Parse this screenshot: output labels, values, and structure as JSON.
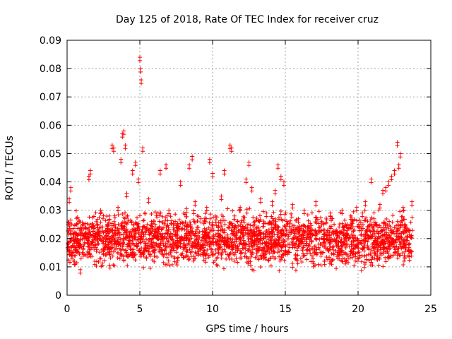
{
  "chart_data": {
    "type": "scatter",
    "title": "Day 125 of 2018, Rate Of TEC Index for receiver cruz",
    "xlabel": "GPS time / hours",
    "ylabel": "ROTI / TECUs",
    "xlim": [
      0,
      25
    ],
    "ylim": [
      0,
      0.09
    ],
    "x_ticks": [
      0,
      5,
      10,
      15,
      20,
      25
    ],
    "x_tick_labels": [
      "0",
      "5",
      "10",
      "15",
      "20",
      "25"
    ],
    "y_ticks": [
      0,
      0.01,
      0.02,
      0.03,
      0.04,
      0.05,
      0.06,
      0.07,
      0.08,
      0.09
    ],
    "y_tick_labels": [
      "0",
      "0.01",
      "0.02",
      "0.03",
      "0.04",
      "0.05",
      "0.06",
      "0.07",
      "0.08",
      "0.09"
    ],
    "grid": true,
    "marker": "+",
    "color": "#ff0000",
    "series": [
      {
        "name": "ROTI",
        "x": [
          0.05,
          0.15,
          0.25,
          0.35,
          0.5,
          0.7,
          0.9,
          1.1,
          1.3,
          1.5,
          1.6,
          1.7,
          1.9,
          2.1,
          2.3,
          2.5,
          2.7,
          2.9,
          3.1,
          3.2,
          3.3,
          3.5,
          3.7,
          3.8,
          3.9,
          4.0,
          4.1,
          4.3,
          4.5,
          4.7,
          4.9,
          5.0,
          5.05,
          5.1,
          5.2,
          5.4,
          5.6,
          5.8,
          6.0,
          6.2,
          6.4,
          6.6,
          6.8,
          7.0,
          7.2,
          7.4,
          7.6,
          7.8,
          8.0,
          8.2,
          8.4,
          8.6,
          8.8,
          9.0,
          9.2,
          9.4,
          9.6,
          9.8,
          10.0,
          10.2,
          10.4,
          10.6,
          10.8,
          11.0,
          11.2,
          11.3,
          11.5,
          11.7,
          11.9,
          12.1,
          12.3,
          12.5,
          12.7,
          12.9,
          13.1,
          13.3,
          13.5,
          13.7,
          13.9,
          14.1,
          14.3,
          14.5,
          14.7,
          14.9,
          15.1,
          15.3,
          15.5,
          15.7,
          15.9,
          16.1,
          16.3,
          16.5,
          16.7,
          16.9,
          17.1,
          17.3,
          17.5,
          17.7,
          17.9,
          18.1,
          18.3,
          18.5,
          18.7,
          18.9,
          19.1,
          19.3,
          19.5,
          19.7,
          19.9,
          20.1,
          20.3,
          20.5,
          20.7,
          20.9,
          21.1,
          21.3,
          21.5,
          21.7,
          21.9,
          22.1,
          22.3,
          22.5,
          22.7,
          22.8,
          22.9,
          23.1,
          23.3,
          23.5,
          23.7
        ],
        "y": [
          0.018,
          0.034,
          0.038,
          0.015,
          0.012,
          0.02,
          0.009,
          0.015,
          0.022,
          0.042,
          0.044,
          0.018,
          0.012,
          0.025,
          0.03,
          0.016,
          0.021,
          0.028,
          0.053,
          0.052,
          0.024,
          0.031,
          0.048,
          0.057,
          0.058,
          0.053,
          0.036,
          0.022,
          0.044,
          0.047,
          0.041,
          0.084,
          0.08,
          0.076,
          0.052,
          0.018,
          0.034,
          0.026,
          0.015,
          0.022,
          0.044,
          0.02,
          0.046,
          0.03,
          0.017,
          0.013,
          0.025,
          0.04,
          0.018,
          0.023,
          0.046,
          0.049,
          0.033,
          0.021,
          0.027,
          0.018,
          0.031,
          0.048,
          0.043,
          0.016,
          0.024,
          0.035,
          0.044,
          0.019,
          0.053,
          0.052,
          0.028,
          0.017,
          0.031,
          0.024,
          0.041,
          0.047,
          0.038,
          0.026,
          0.021,
          0.034,
          0.016,
          0.029,
          0.022,
          0.033,
          0.037,
          0.046,
          0.042,
          0.04,
          0.026,
          0.018,
          0.032,
          0.014,
          0.027,
          0.02,
          0.03,
          0.016,
          0.024,
          0.013,
          0.033,
          0.018,
          0.026,
          0.012,
          0.021,
          0.029,
          0.016,
          0.023,
          0.014,
          0.03,
          0.019,
          0.025,
          0.028,
          0.02,
          0.031,
          0.024,
          0.029,
          0.033,
          0.021,
          0.041,
          0.027,
          0.019,
          0.032,
          0.037,
          0.038,
          0.04,
          0.042,
          0.044,
          0.054,
          0.046,
          0.05,
          0.031,
          0.024,
          0.018,
          0.033
        ],
        "base_band": [
          0.007,
          0.03
        ]
      }
    ]
  }
}
